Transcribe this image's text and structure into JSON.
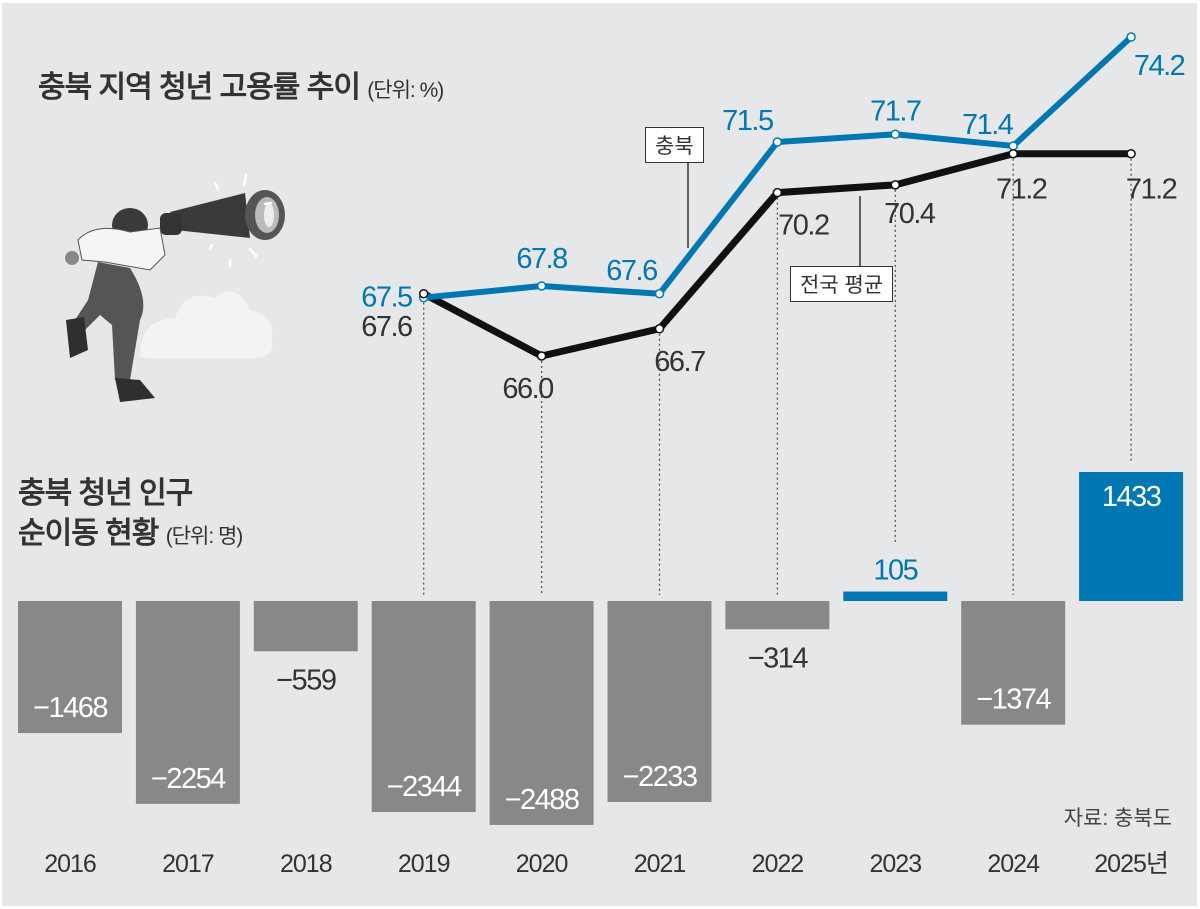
{
  "title": "충북 지역 청년 고용률 추이",
  "title_unit": "(단위: %)",
  "bar_title_line1": "충북 청년 인구",
  "bar_title_line2": "순이동 현황",
  "bar_title_unit": "(단위: 명)",
  "source": "자료: 충북도",
  "colors": {
    "chungbuk": "#0077b3",
    "national": "#111111",
    "negative_bar": "#87888a",
    "positive_bar": "#0077b3",
    "background": "#e6e7e9"
  },
  "chart_data": [
    {
      "type": "line",
      "title": "충북 지역 청년 고용률 추이",
      "unit": "%",
      "x": [
        "2019",
        "2020",
        "2021",
        "2022",
        "2023",
        "2024",
        "2025"
      ],
      "series": [
        {
          "name": "충북",
          "values": [
            67.5,
            67.8,
            67.6,
            71.5,
            71.7,
            71.4,
            74.2
          ],
          "labels": [
            "67.5",
            "67.8",
            "67.6",
            "71.5",
            "71.7",
            "71.4",
            "74.2"
          ]
        },
        {
          "name": "전국 평균",
          "values": [
            67.6,
            66.0,
            66.7,
            70.2,
            70.4,
            71.2,
            71.2
          ],
          "labels": [
            "67.6",
            "66.0",
            "66.7",
            "70.2",
            "70.4",
            "71.2",
            "71.2"
          ]
        }
      ],
      "ylim": [
        66.0,
        74.2
      ]
    },
    {
      "type": "bar",
      "title": "충북 청년 인구 순이동 현황",
      "unit": "명",
      "categories": [
        "2016",
        "2017",
        "2018",
        "2019",
        "2020",
        "2021",
        "2022",
        "2023",
        "2024",
        "2025년"
      ],
      "values": [
        -1468,
        -2254,
        -559,
        -2344,
        -2488,
        -2233,
        -314,
        105,
        -1374,
        1433
      ],
      "labels": [
        "−1468",
        "−2254",
        "−559",
        "−2344",
        "−2488",
        "−2233",
        "−314",
        "105",
        "−1374",
        "1433"
      ]
    }
  ]
}
